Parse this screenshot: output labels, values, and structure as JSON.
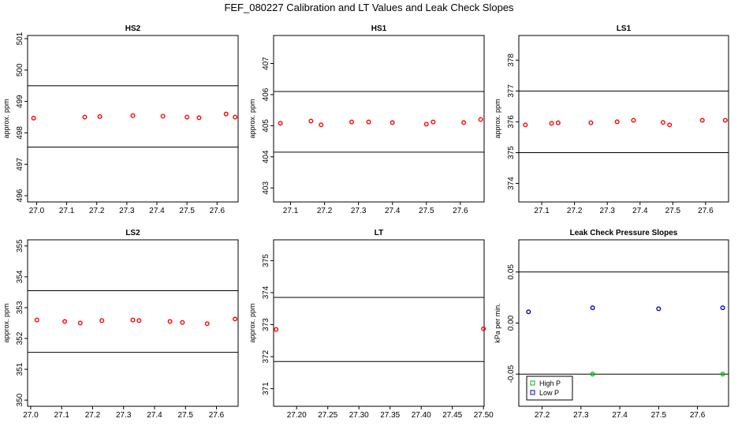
{
  "title": "FEF_080227  Calibration and LT Values and Leak Check Slopes",
  "chart_data": [
    {
      "type": "scatter",
      "title": "HS2",
      "ylabel": "approx. ppm",
      "xlim": [
        26.97,
        27.67
      ],
      "ylim": [
        495.8,
        501.1
      ],
      "xticks": [
        27.0,
        27.1,
        27.2,
        27.3,
        27.4,
        27.5,
        27.6
      ],
      "xtick_labels": [
        "27.0",
        "27.1",
        "27.2",
        "27.3",
        "27.4",
        "27.5",
        "27.6"
      ],
      "yticks": [
        496,
        497,
        498,
        499,
        500,
        501
      ],
      "ytick_labels": [
        "496",
        "497",
        "498",
        "499",
        "500",
        "501"
      ],
      "hlines": [
        497.55,
        499.5
      ],
      "series": [
        {
          "color": "#ff0000",
          "x": [
            26.99,
            27.16,
            27.21,
            27.32,
            27.42,
            27.5,
            27.54,
            27.63,
            27.66
          ],
          "y": [
            498.47,
            498.5,
            498.52,
            498.55,
            498.53,
            498.5,
            498.48,
            498.6,
            498.5
          ]
        }
      ]
    },
    {
      "type": "scatter",
      "title": "HS1",
      "ylabel": "approx. ppm",
      "xlim": [
        27.05,
        27.67
      ],
      "ylim": [
        402.55,
        407.9
      ],
      "xticks": [
        27.1,
        27.2,
        27.3,
        27.4,
        27.5,
        27.6
      ],
      "xtick_labels": [
        "27.1",
        "27.2",
        "27.3",
        "27.4",
        "27.5",
        "27.6"
      ],
      "yticks": [
        403,
        404,
        405,
        406,
        407
      ],
      "ytick_labels": [
        "403",
        "404",
        "405",
        "406",
        "407"
      ],
      "hlines": [
        404.15,
        406.1
      ],
      "series": [
        {
          "color": "#ff0000",
          "x": [
            27.07,
            27.16,
            27.19,
            27.28,
            27.33,
            27.4,
            27.5,
            27.52,
            27.61,
            27.66
          ],
          "y": [
            405.08,
            405.15,
            405.03,
            405.12,
            405.12,
            405.1,
            405.05,
            405.12,
            405.1,
            405.2
          ]
        }
      ]
    },
    {
      "type": "scatter",
      "title": "LS1",
      "ylabel": "approx. ppm",
      "xlim": [
        27.03,
        27.67
      ],
      "ylim": [
        373.4,
        378.8
      ],
      "xticks": [
        27.1,
        27.2,
        27.3,
        27.4,
        27.5,
        27.6
      ],
      "xtick_labels": [
        "27.1",
        "27.2",
        "27.3",
        "27.4",
        "27.5",
        "27.6"
      ],
      "yticks": [
        374,
        375,
        376,
        377,
        378
      ],
      "ytick_labels": [
        "374",
        "375",
        "376",
        "377",
        "378"
      ],
      "hlines": [
        375.0,
        377.0
      ],
      "series": [
        {
          "color": "#ff0000",
          "x": [
            27.05,
            27.13,
            27.15,
            27.25,
            27.33,
            27.38,
            27.47,
            27.49,
            27.59,
            27.66
          ],
          "y": [
            375.9,
            375.95,
            375.97,
            375.97,
            376.0,
            376.05,
            375.98,
            375.9,
            376.05,
            376.05
          ]
        }
      ]
    },
    {
      "type": "scatter",
      "title": "LS2",
      "ylabel": "approx. ppm",
      "xlim": [
        26.99,
        27.67
      ],
      "ylim": [
        349.8,
        355.2
      ],
      "xticks": [
        27.0,
        27.1,
        27.2,
        27.3,
        27.4,
        27.5,
        27.6
      ],
      "xtick_labels": [
        "27.0",
        "27.1",
        "27.2",
        "27.3",
        "27.4",
        "27.5",
        "27.6"
      ],
      "yticks": [
        350,
        351,
        352,
        353,
        354,
        355
      ],
      "ytick_labels": [
        "350",
        "351",
        "352",
        "353",
        "354",
        "355"
      ],
      "hlines": [
        351.55,
        353.55
      ],
      "series": [
        {
          "color": "#ff0000",
          "x": [
            27.02,
            27.11,
            27.16,
            27.23,
            27.33,
            27.35,
            27.45,
            27.49,
            27.57,
            27.66
          ],
          "y": [
            352.6,
            352.55,
            352.5,
            352.58,
            352.6,
            352.58,
            352.55,
            352.52,
            352.48,
            352.63
          ]
        }
      ]
    },
    {
      "type": "scatter",
      "title": "LT",
      "ylabel": "approx. ppm",
      "xlim": [
        27.163,
        27.501
      ],
      "ylim": [
        370.45,
        375.65
      ],
      "xticks": [
        27.2,
        27.25,
        27.3,
        27.35,
        27.4,
        27.45,
        27.5
      ],
      "xtick_labels": [
        "27.20",
        "27.25",
        "27.30",
        "27.35",
        "27.40",
        "27.45",
        "27.50"
      ],
      "yticks": [
        371,
        372,
        373,
        374,
        375
      ],
      "ytick_labels": [
        "371",
        "372",
        "373",
        "374",
        "375"
      ],
      "hlines": [
        371.85,
        373.85
      ],
      "series": [
        {
          "color": "#ff0000",
          "x": [
            27.167,
            27.5
          ],
          "y": [
            372.85,
            372.87
          ]
        }
      ]
    },
    {
      "type": "scatter",
      "title": "Leak Check Pressure Slopes",
      "ylabel": "kPa per min.",
      "xlim": [
        27.14,
        27.68
      ],
      "ylim": [
        -0.0815,
        0.0815
      ],
      "xticks": [
        27.2,
        27.3,
        27.4,
        27.5,
        27.6
      ],
      "xtick_labels": [
        "27.2",
        "27.3",
        "27.4",
        "27.5",
        "27.6"
      ],
      "yticks": [
        -0.05,
        0.0,
        0.05
      ],
      "ytick_labels": [
        "-0.05",
        "0.00",
        "0.05"
      ],
      "hlines": [
        -0.05,
        0.05
      ],
      "legend": "bottom-left",
      "series": [
        {
          "name": "High P",
          "color": "#00bb00",
          "x": [
            27.33,
            27.665
          ],
          "y": [
            -0.05,
            -0.05
          ]
        },
        {
          "name": "Low P",
          "color": "#0000cc",
          "x": [
            27.165,
            27.33,
            27.5,
            27.665
          ],
          "y": [
            0.011,
            0.015,
            0.014,
            0.015
          ]
        }
      ]
    }
  ]
}
